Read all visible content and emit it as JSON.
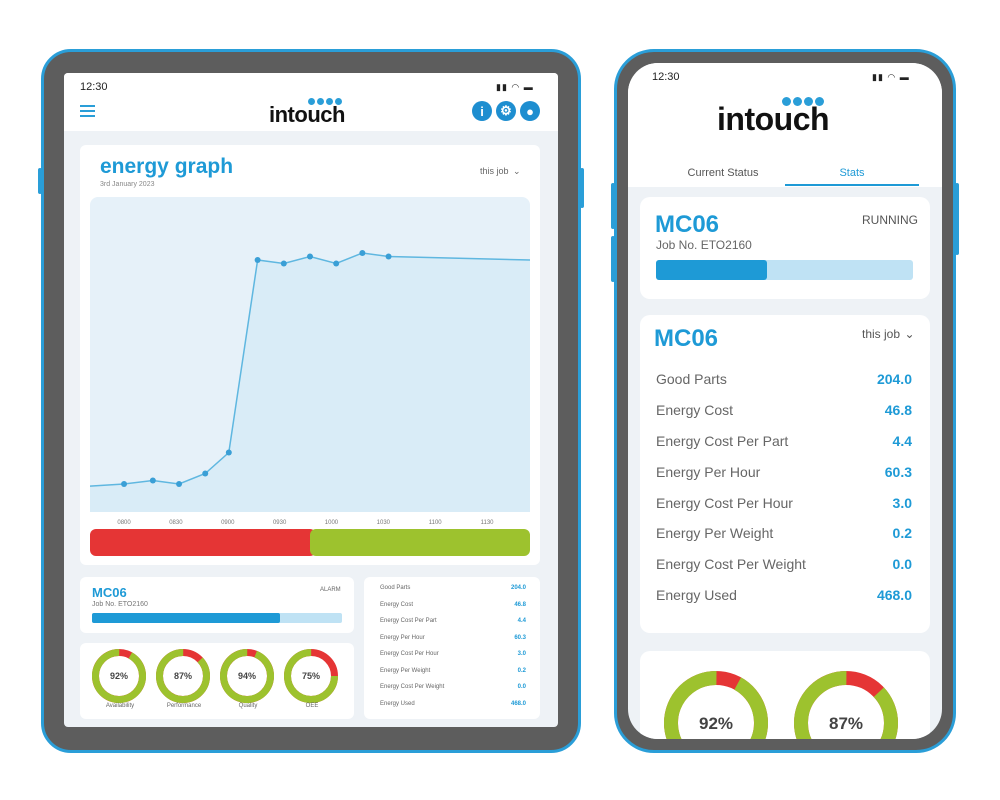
{
  "tablet": {
    "status_time": "12:30",
    "logo": "intouch",
    "chart_card": {
      "title": "energy graph",
      "date": "3rd January 2023",
      "filter": "this job"
    },
    "split_bar": {
      "red_fraction": 0.5,
      "red_color": "#e53535",
      "green_color": "#9dc22e"
    },
    "mc_card": {
      "title": "MC06",
      "job": "Job No. ETO2160",
      "status": "ALARM",
      "progress": 0.75
    },
    "stats": [
      {
        "label": "Good Parts",
        "value": "204.0"
      },
      {
        "label": "Energy Cost",
        "value": "46.8"
      },
      {
        "label": "Energy Cost Per Part",
        "value": "4.4"
      },
      {
        "label": "Energy Per Hour",
        "value": "60.3"
      },
      {
        "label": "Energy Cost Per Hour",
        "value": "3.0"
      },
      {
        "label": "Energy Per Weight",
        "value": "0.2"
      },
      {
        "label": "Energy Cost Per Weight",
        "value": "0.0"
      },
      {
        "label": "Energy Used",
        "value": "468.0"
      }
    ],
    "donuts": [
      {
        "label": "Availability",
        "value_text": "92%",
        "percent": 92
      },
      {
        "label": "Performance",
        "value_text": "87%",
        "percent": 87
      },
      {
        "label": "Quality",
        "value_text": "94%",
        "percent": 94
      },
      {
        "label": "OEE",
        "value_text": "75%",
        "percent": 75
      }
    ]
  },
  "chart_data": {
    "type": "area",
    "title": "energy graph",
    "subtitle": "3rd January 2023",
    "categories": [
      "0800",
      "0830",
      "0900",
      "0930",
      "1000",
      "1030",
      "1100",
      "1130",
      "1200"
    ],
    "values": [
      40,
      45,
      40,
      55,
      85,
      360,
      355,
      365,
      355,
      370,
      365
    ],
    "x": [
      0.85,
      1.4,
      1.9,
      2.4,
      2.85,
      3.4,
      3.9,
      4.4,
      4.9,
      5.4,
      5.9
    ],
    "ylim": [
      0,
      450
    ],
    "series_color": "#5fb7e0",
    "fill_color": "#d9ecf7",
    "grid": false,
    "legend": "none"
  },
  "phone": {
    "status_time": "12:30",
    "logo": "intouch",
    "tabs": [
      {
        "label": "Current Status",
        "active": false
      },
      {
        "label": "Stats",
        "active": true
      }
    ],
    "mc_card": {
      "title": "MC06",
      "job": "Job No. ETO2160",
      "status": "RUNNING",
      "progress": 0.43
    },
    "stats_card": {
      "title": "MC06",
      "filter": "this job"
    },
    "stats": [
      {
        "label": "Good Parts",
        "value": "204.0"
      },
      {
        "label": "Energy Cost",
        "value": "46.8"
      },
      {
        "label": "Energy Cost Per Part",
        "value": "4.4"
      },
      {
        "label": "Energy Per Hour",
        "value": "60.3"
      },
      {
        "label": "Energy Cost Per Hour",
        "value": "3.0"
      },
      {
        "label": "Energy Per Weight",
        "value": "0.2"
      },
      {
        "label": "Energy Cost Per Weight",
        "value": "0.0"
      },
      {
        "label": "Energy Used",
        "value": "468.0"
      }
    ],
    "donuts": [
      {
        "value_text": "92%",
        "percent": 92
      },
      {
        "value_text": "87%",
        "percent": 87
      }
    ]
  },
  "colors": {
    "accent": "#1e9ad6",
    "good": "#9dc22e",
    "bad": "#e53535",
    "light_accent": "#bfe2f4"
  }
}
